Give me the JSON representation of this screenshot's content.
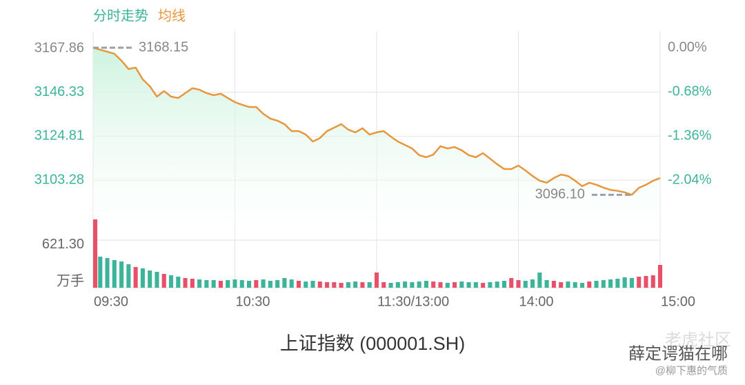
{
  "chart_data": {
    "type": "intraday",
    "title": "上证指数 (000001.SH)",
    "legend": [
      {
        "name": "分时走势",
        "color": "#3cb49a"
      },
      {
        "name": "均线",
        "color": "#e8963c"
      }
    ],
    "x": [
      0,
      3,
      6,
      9,
      12,
      15,
      18,
      21,
      24,
      27,
      30,
      33,
      36,
      39,
      42,
      45,
      48,
      51,
      54,
      57,
      60,
      63,
      66,
      69,
      72,
      75,
      78,
      81,
      84,
      87,
      90,
      93,
      96,
      99,
      102,
      105,
      108,
      111,
      114,
      117,
      120,
      123,
      126,
      129,
      132,
      135,
      138,
      141,
      144,
      147,
      150,
      153,
      156,
      159,
      162,
      165,
      168,
      171,
      174,
      177,
      180,
      183,
      186,
      189,
      192,
      195,
      198,
      201,
      204,
      207,
      210,
      213,
      216,
      219,
      222,
      225,
      228,
      231,
      234,
      237,
      240
    ],
    "xlim": [
      0,
      240
    ],
    "xticks": [
      {
        "value": 0,
        "label": "09:30"
      },
      {
        "value": 60,
        "label": "10:30"
      },
      {
        "value": 120,
        "label": "11:30/13:00"
      },
      {
        "value": 180,
        "label": "14:00"
      },
      {
        "value": 240,
        "label": "15:00"
      }
    ],
    "series": [
      {
        "name": "均线",
        "color": "#e8963c",
        "values": [
          3168.15,
          3167.18,
          3166.2,
          3165.16,
          3161.78,
          3157.72,
          3158.4,
          3152.65,
          3149.27,
          3144.2,
          3146.9,
          3144.2,
          3143.5,
          3145.9,
          3148.3,
          3147.6,
          3145.9,
          3144.9,
          3145.6,
          3143.5,
          3141.5,
          3140.2,
          3139.1,
          3139.1,
          3135.8,
          3133.4,
          3132.4,
          3130.7,
          3127.3,
          3127.3,
          3125.6,
          3122.2,
          3123.9,
          3127.3,
          3129.0,
          3130.7,
          3128.0,
          3126.7,
          3128.7,
          3125.6,
          3126.7,
          3127.3,
          3124.6,
          3122.2,
          3120.5,
          3118.8,
          3115.5,
          3114.5,
          3115.8,
          3119.9,
          3118.8,
          3119.5,
          3117.9,
          3115.5,
          3114.5,
          3116.5,
          3113.8,
          3111.1,
          3108.7,
          3108.7,
          3110.4,
          3108.0,
          3105.3,
          3103.0,
          3102.0,
          3104.3,
          3106.0,
          3105.3,
          3103.0,
          3100.3,
          3102.0,
          3101.0,
          3099.6,
          3098.5,
          3098.0,
          3097.3,
          3096.1,
          3099.5,
          3101.0,
          3103.0,
          3104.3
        ]
      }
    ],
    "ylim": [
      3073.9,
      3176.31
    ],
    "yticks": [
      3167.86,
      3146.33,
      3124.81,
      3103.28
    ],
    "y2lim": [
      -2.963,
      0.257
    ],
    "y2ticks": [
      {
        "value": 0,
        "label": "0.00%"
      },
      {
        "value": -0.68,
        "label": "-0.68%"
      },
      {
        "value": -1.36,
        "label": "-1.36%"
      },
      {
        "value": -2.04,
        "label": "-2.04%"
      }
    ],
    "high": 3168.15,
    "low": {
      "value": 3096.1,
      "label": "3096.10"
    },
    "volume": [
      990,
      450,
      430,
      400,
      380,
      340,
      300,
      280,
      250,
      230,
      200,
      180,
      160,
      140,
      130,
      120,
      110,
      110,
      100,
      110,
      120,
      110,
      100,
      110,
      120,
      100,
      110,
      140,
      120,
      100,
      90,
      100,
      90,
      80,
      80,
      70,
      80,
      90,
      80,
      80,
      220,
      80,
      70,
      80,
      90,
      80,
      90,
      100,
      90,
      80,
      70,
      80,
      90,
      80,
      80,
      70,
      80,
      90,
      100,
      140,
      110,
      100,
      120,
      220,
      110,
      100,
      80,
      90,
      80,
      70,
      90,
      100,
      110,
      120,
      130,
      150,
      140,
      160,
      170,
      180,
      330
    ],
    "vol_ylim": [
      0,
      690
    ],
    "vol_yticks": [
      {
        "value": 621.3,
        "label": "621.30"
      }
    ],
    "vol_unit": "万手",
    "up_color": "#e8506a",
    "down_color": "#3cb49a",
    "neutral_color": "#888888",
    "grid": true
  },
  "watermark": {
    "top": "老虎社区",
    "name": "薛定谔猫在哪",
    "handle": "@柳下惠的气质"
  }
}
